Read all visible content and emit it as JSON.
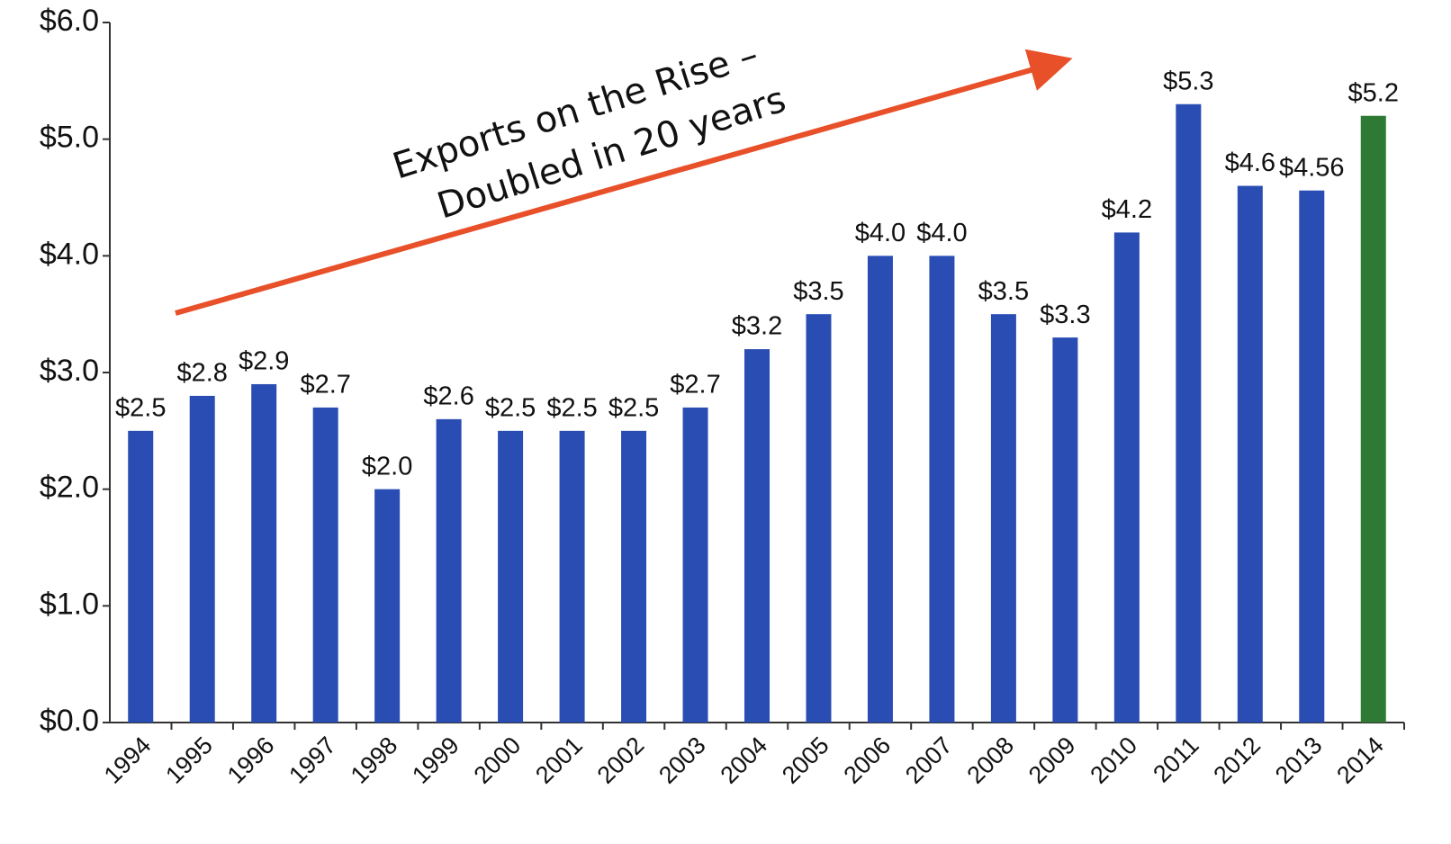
{
  "chart_data": {
    "type": "bar",
    "annotation": [
      "Exports on the Rise –",
      "Doubled in 20 years"
    ],
    "categories": [
      "1994",
      "1995",
      "1996",
      "1997",
      "1998",
      "1999",
      "2000",
      "2001",
      "2002",
      "2003",
      "2004",
      "2005",
      "2006",
      "2007",
      "2008",
      "2009",
      "2010",
      "2011",
      "2012",
      "2013",
      "2014"
    ],
    "values": [
      2.5,
      2.8,
      2.9,
      2.7,
      2.0,
      2.6,
      2.5,
      2.5,
      2.5,
      2.7,
      3.2,
      3.5,
      4.0,
      4.0,
      3.5,
      3.3,
      4.2,
      5.3,
      4.6,
      4.56,
      5.2
    ],
    "value_labels": [
      "$2.5",
      "$2.8",
      "$2.9",
      "$2.7",
      "$2.0",
      "$2.6",
      "$2.5",
      "$2.5",
      "$2.5",
      "$2.7",
      "$3.2",
      "$3.5",
      "$4.0",
      "$4.0",
      "$3.5",
      "$3.3",
      "$4.2",
      "$5.3",
      "$4.6",
      "$4.56",
      "$5.2"
    ],
    "colors": [
      "#2a4db3",
      "#2a4db3",
      "#2a4db3",
      "#2a4db3",
      "#2a4db3",
      "#2a4db3",
      "#2a4db3",
      "#2a4db3",
      "#2a4db3",
      "#2a4db3",
      "#2a4db3",
      "#2a4db3",
      "#2a4db3",
      "#2a4db3",
      "#2a4db3",
      "#2a4db3",
      "#2a4db3",
      "#2a4db3",
      "#2a4db3",
      "#2a4db3",
      "#2e7a34"
    ],
    "ylim": [
      0,
      6
    ],
    "yticks": [
      {
        "value": 0,
        "label": "$0.0"
      },
      {
        "value": 1,
        "label": "$1.0"
      },
      {
        "value": 2,
        "label": "$2.0"
      },
      {
        "value": 3,
        "label": "$3.0"
      },
      {
        "value": 4,
        "label": "$4.0"
      },
      {
        "value": 5,
        "label": "$5.0"
      },
      {
        "value": 6,
        "label": "$6.0"
      }
    ],
    "grid": false
  }
}
